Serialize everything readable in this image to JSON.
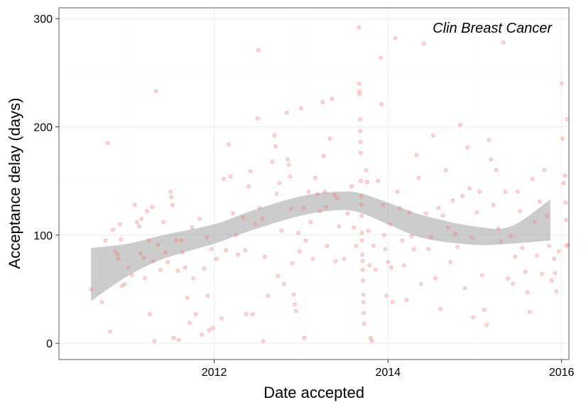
{
  "chart_data": {
    "type": "scatter",
    "annotation": "Clin Breast Cancer",
    "xlabel": "Date accepted",
    "ylabel": "Acceptance delay (days)",
    "x_axis_type": "date",
    "xlim": [
      "2010-03-19",
      "2016-02-01"
    ],
    "ylim": [
      -15,
      310
    ],
    "x_ticks": [
      {
        "value": "2012-01-01",
        "label": "2012"
      },
      {
        "value": "2014-01-01",
        "label": "2014"
      },
      {
        "value": "2016-01-01",
        "label": "2016"
      }
    ],
    "y_ticks": [
      {
        "value": 0,
        "label": "0"
      },
      {
        "value": 100,
        "label": "100"
      },
      {
        "value": 200,
        "label": "200"
      },
      {
        "value": 300,
        "label": "300"
      }
    ],
    "grid": true,
    "point_color": "#f8766d",
    "band_color": "#999999",
    "smooth": {
      "x": [
        "2010-08-01",
        "2011-01-01",
        "2011-06-01",
        "2012-01-01",
        "2012-06-01",
        "2013-01-01",
        "2013-06-01",
        "2013-09-01",
        "2014-01-01",
        "2014-06-01",
        "2015-01-01",
        "2015-06-01",
        "2015-11-15"
      ],
      "upper": [
        88,
        92,
        100,
        110,
        122,
        136,
        140,
        139,
        130,
        118,
        108,
        108,
        133
      ],
      "lower": [
        39,
        62,
        78,
        92,
        104,
        118,
        123,
        121,
        110,
        97,
        91,
        92,
        95
      ]
    },
    "points": [
      {
        "x": "2010-08-01",
        "y": 50
      },
      {
        "x": "2010-09-15",
        "y": 38
      },
      {
        "x": "2010-10-01",
        "y": 95
      },
      {
        "x": "2010-10-10",
        "y": 185
      },
      {
        "x": "2010-10-20",
        "y": 11
      },
      {
        "x": "2010-11-01",
        "y": 105
      },
      {
        "x": "2010-11-10",
        "y": 85
      },
      {
        "x": "2010-11-20",
        "y": 82
      },
      {
        "x": "2010-11-25",
        "y": 78
      },
      {
        "x": "2010-12-01",
        "y": 110
      },
      {
        "x": "2010-12-05",
        "y": 96
      },
      {
        "x": "2010-12-10",
        "y": 53
      },
      {
        "x": "2010-12-20",
        "y": 55
      },
      {
        "x": "2011-01-05",
        "y": 70
      },
      {
        "x": "2011-01-20",
        "y": 63
      },
      {
        "x": "2011-02-01",
        "y": 128
      },
      {
        "x": "2011-02-10",
        "y": 112
      },
      {
        "x": "2011-02-20",
        "y": 108
      },
      {
        "x": "2011-02-25",
        "y": 83
      },
      {
        "x": "2011-03-01",
        "y": 115
      },
      {
        "x": "2011-03-10",
        "y": 79
      },
      {
        "x": "2011-03-15",
        "y": 60
      },
      {
        "x": "2011-03-25",
        "y": 122
      },
      {
        "x": "2011-04-01",
        "y": 95
      },
      {
        "x": "2011-04-05",
        "y": 27
      },
      {
        "x": "2011-04-15",
        "y": 126
      },
      {
        "x": "2011-04-20",
        "y": 76
      },
      {
        "x": "2011-04-25",
        "y": 2
      },
      {
        "x": "2011-05-01",
        "y": 233
      },
      {
        "x": "2011-05-10",
        "y": 91
      },
      {
        "x": "2011-05-20",
        "y": 68
      },
      {
        "x": "2011-06-01",
        "y": 112
      },
      {
        "x": "2011-06-10",
        "y": 84
      },
      {
        "x": "2011-06-20",
        "y": 75
      },
      {
        "x": "2011-07-01",
        "y": 140
      },
      {
        "x": "2011-07-05",
        "y": 135
      },
      {
        "x": "2011-07-10",
        "y": 128
      },
      {
        "x": "2011-07-15",
        "y": 5
      },
      {
        "x": "2011-07-25",
        "y": 95
      },
      {
        "x": "2011-08-01",
        "y": 67
      },
      {
        "x": "2011-08-05",
        "y": 3
      },
      {
        "x": "2011-08-15",
        "y": 95
      },
      {
        "x": "2011-08-20",
        "y": 84
      },
      {
        "x": "2011-09-01",
        "y": 70
      },
      {
        "x": "2011-09-10",
        "y": 42
      },
      {
        "x": "2011-09-20",
        "y": 19
      },
      {
        "x": "2011-10-01",
        "y": 107
      },
      {
        "x": "2011-10-05",
        "y": 60
      },
      {
        "x": "2011-10-15",
        "y": 27
      },
      {
        "x": "2011-11-01",
        "y": 115
      },
      {
        "x": "2011-11-10",
        "y": 8
      },
      {
        "x": "2011-11-20",
        "y": 69
      },
      {
        "x": "2011-12-01",
        "y": 98
      },
      {
        "x": "2011-12-05",
        "y": 44
      },
      {
        "x": "2011-12-10",
        "y": 12
      },
      {
        "x": "2011-12-20",
        "y": 87
      },
      {
        "x": "2011-12-25",
        "y": 14
      },
      {
        "x": "2012-01-10",
        "y": 78
      },
      {
        "x": "2012-02-01",
        "y": 23
      },
      {
        "x": "2012-02-10",
        "y": 152
      },
      {
        "x": "2012-02-20",
        "y": 86
      },
      {
        "x": "2012-03-01",
        "y": 184
      },
      {
        "x": "2012-03-10",
        "y": 154
      },
      {
        "x": "2012-03-20",
        "y": 120
      },
      {
        "x": "2012-04-01",
        "y": 100
      },
      {
        "x": "2012-04-10",
        "y": 82
      },
      {
        "x": "2012-05-01",
        "y": 116
      },
      {
        "x": "2012-05-10",
        "y": 86
      },
      {
        "x": "2012-05-15",
        "y": 27
      },
      {
        "x": "2012-05-25",
        "y": 145
      },
      {
        "x": "2012-06-01",
        "y": 159
      },
      {
        "x": "2012-06-10",
        "y": 27
      },
      {
        "x": "2012-06-20",
        "y": 110
      },
      {
        "x": "2012-07-01",
        "y": 208
      },
      {
        "x": "2012-07-05",
        "y": 271
      },
      {
        "x": "2012-07-10",
        "y": 125
      },
      {
        "x": "2012-07-20",
        "y": 115
      },
      {
        "x": "2012-07-25",
        "y": 2
      },
      {
        "x": "2012-08-01",
        "y": 80
      },
      {
        "x": "2012-08-15",
        "y": 44
      },
      {
        "x": "2012-09-01",
        "y": 168
      },
      {
        "x": "2012-09-10",
        "y": 192
      },
      {
        "x": "2012-09-15",
        "y": 182
      },
      {
        "x": "2012-09-20",
        "y": 138
      },
      {
        "x": "2012-09-25",
        "y": 62
      },
      {
        "x": "2012-10-01",
        "y": 148
      },
      {
        "x": "2012-10-10",
        "y": 104
      },
      {
        "x": "2012-10-20",
        "y": 55
      },
      {
        "x": "2012-11-01",
        "y": 213
      },
      {
        "x": "2012-11-05",
        "y": 170
      },
      {
        "x": "2012-11-10",
        "y": 165
      },
      {
        "x": "2012-11-15",
        "y": 154
      },
      {
        "x": "2012-11-20",
        "y": 124
      },
      {
        "x": "2012-11-25",
        "y": 74
      },
      {
        "x": "2012-12-01",
        "y": 45
      },
      {
        "x": "2012-12-05",
        "y": 36
      },
      {
        "x": "2012-12-10",
        "y": 30
      },
      {
        "x": "2012-12-20",
        "y": 102
      },
      {
        "x": "2012-12-25",
        "y": 85
      },
      {
        "x": "2013-01-01",
        "y": 217
      },
      {
        "x": "2013-01-10",
        "y": 125
      },
      {
        "x": "2013-01-15",
        "y": 5
      },
      {
        "x": "2013-01-20",
        "y": 95
      },
      {
        "x": "2013-02-01",
        "y": 140
      },
      {
        "x": "2013-02-10",
        "y": 112
      },
      {
        "x": "2013-02-20",
        "y": 78
      },
      {
        "x": "2013-03-01",
        "y": 153
      },
      {
        "x": "2013-03-10",
        "y": 138
      },
      {
        "x": "2013-03-20",
        "y": 122
      },
      {
        "x": "2013-04-01",
        "y": 223
      },
      {
        "x": "2013-04-05",
        "y": 173
      },
      {
        "x": "2013-04-10",
        "y": 140
      },
      {
        "x": "2013-04-15",
        "y": 126
      },
      {
        "x": "2013-04-20",
        "y": 90
      },
      {
        "x": "2013-05-01",
        "y": 189
      },
      {
        "x": "2013-05-10",
        "y": 226
      },
      {
        "x": "2013-05-20",
        "y": 137
      },
      {
        "x": "2013-05-25",
        "y": 76
      },
      {
        "x": "2013-06-01",
        "y": 134
      },
      {
        "x": "2013-06-10",
        "y": 108
      },
      {
        "x": "2013-07-01",
        "y": 78
      },
      {
        "x": "2013-07-15",
        "y": 120
      },
      {
        "x": "2013-08-01",
        "y": 145
      },
      {
        "x": "2013-08-10",
        "y": 107
      },
      {
        "x": "2013-08-20",
        "y": 90
      },
      {
        "x": "2013-09-01",
        "y": 292
      },
      {
        "x": "2013-09-02",
        "y": 240
      },
      {
        "x": "2013-09-03",
        "y": 233
      },
      {
        "x": "2013-09-04",
        "y": 230
      },
      {
        "x": "2013-09-05",
        "y": 207
      },
      {
        "x": "2013-09-06",
        "y": 196
      },
      {
        "x": "2013-09-07",
        "y": 186
      },
      {
        "x": "2013-09-08",
        "y": 176
      },
      {
        "x": "2013-09-09",
        "y": 150
      },
      {
        "x": "2013-09-10",
        "y": 136
      },
      {
        "x": "2013-09-11",
        "y": 128
      },
      {
        "x": "2013-09-12",
        "y": 118
      },
      {
        "x": "2013-09-13",
        "y": 102
      },
      {
        "x": "2013-09-14",
        "y": 95
      },
      {
        "x": "2013-09-15",
        "y": 82
      },
      {
        "x": "2013-09-16",
        "y": 76
      },
      {
        "x": "2013-09-17",
        "y": 68
      },
      {
        "x": "2013-09-18",
        "y": 58
      },
      {
        "x": "2013-09-19",
        "y": 45
      },
      {
        "x": "2013-09-20",
        "y": 38
      },
      {
        "x": "2013-09-21",
        "y": 28
      },
      {
        "x": "2013-09-22",
        "y": 18
      },
      {
        "x": "2013-10-01",
        "y": 160
      },
      {
        "x": "2013-10-05",
        "y": 149
      },
      {
        "x": "2013-10-10",
        "y": 104
      },
      {
        "x": "2013-10-15",
        "y": 72
      },
      {
        "x": "2013-10-20",
        "y": 5
      },
      {
        "x": "2013-10-25",
        "y": 2
      },
      {
        "x": "2013-11-01",
        "y": 90
      },
      {
        "x": "2013-11-10",
        "y": 68
      },
      {
        "x": "2013-11-20",
        "y": 150
      },
      {
        "x": "2013-12-01",
        "y": 264
      },
      {
        "x": "2013-12-05",
        "y": 221
      },
      {
        "x": "2013-12-10",
        "y": 128
      },
      {
        "x": "2013-12-15",
        "y": 100
      },
      {
        "x": "2013-12-20",
        "y": 87
      },
      {
        "x": "2013-12-25",
        "y": 44
      },
      {
        "x": "2014-01-01",
        "y": 75
      },
      {
        "x": "2014-01-10",
        "y": 110
      },
      {
        "x": "2014-01-15",
        "y": 70
      },
      {
        "x": "2014-01-20",
        "y": 38
      },
      {
        "x": "2014-02-01",
        "y": 282
      },
      {
        "x": "2014-02-10",
        "y": 140
      },
      {
        "x": "2014-02-20",
        "y": 125
      },
      {
        "x": "2014-03-01",
        "y": 95
      },
      {
        "x": "2014-03-10",
        "y": 72
      },
      {
        "x": "2014-03-20",
        "y": 40
      },
      {
        "x": "2014-04-01",
        "y": 121
      },
      {
        "x": "2014-04-10",
        "y": 99
      },
      {
        "x": "2014-04-20",
        "y": 87
      },
      {
        "x": "2014-05-01",
        "y": 174
      },
      {
        "x": "2014-05-10",
        "y": 153
      },
      {
        "x": "2014-05-20",
        "y": 55
      },
      {
        "x": "2014-06-01",
        "y": 277
      },
      {
        "x": "2014-06-10",
        "y": 120
      },
      {
        "x": "2014-06-20",
        "y": 87
      },
      {
        "x": "2014-07-01",
        "y": 98
      },
      {
        "x": "2014-07-10",
        "y": 192
      },
      {
        "x": "2014-07-20",
        "y": 60
      },
      {
        "x": "2014-08-01",
        "y": 125
      },
      {
        "x": "2014-08-10",
        "y": 32
      },
      {
        "x": "2014-08-20",
        "y": 118
      },
      {
        "x": "2014-09-01",
        "y": 160
      },
      {
        "x": "2014-09-10",
        "y": 107
      },
      {
        "x": "2014-09-20",
        "y": 75
      },
      {
        "x": "2014-10-01",
        "y": 132
      },
      {
        "x": "2014-10-10",
        "y": 101
      },
      {
        "x": "2014-10-20",
        "y": 89
      },
      {
        "x": "2014-11-01",
        "y": 202
      },
      {
        "x": "2014-11-10",
        "y": 136
      },
      {
        "x": "2014-11-20",
        "y": 51
      },
      {
        "x": "2014-12-01",
        "y": 181
      },
      {
        "x": "2014-12-10",
        "y": 143
      },
      {
        "x": "2014-12-20",
        "y": 98
      },
      {
        "x": "2014-12-25",
        "y": 24
      },
      {
        "x": "2015-01-10",
        "y": 121
      },
      {
        "x": "2015-01-20",
        "y": 140
      },
      {
        "x": "2015-02-01",
        "y": 63
      },
      {
        "x": "2015-02-10",
        "y": 31
      },
      {
        "x": "2015-02-20",
        "y": 17
      },
      {
        "x": "2015-03-01",
        "y": 188
      },
      {
        "x": "2015-03-10",
        "y": 170
      },
      {
        "x": "2015-03-20",
        "y": 128
      },
      {
        "x": "2015-04-01",
        "y": 160
      },
      {
        "x": "2015-04-10",
        "y": 106
      },
      {
        "x": "2015-04-20",
        "y": 94
      },
      {
        "x": "2015-05-01",
        "y": 278
      },
      {
        "x": "2015-05-10",
        "y": 140
      },
      {
        "x": "2015-05-20",
        "y": 60
      },
      {
        "x": "2015-06-01",
        "y": 99
      },
      {
        "x": "2015-06-10",
        "y": 55
      },
      {
        "x": "2015-06-20",
        "y": 80
      },
      {
        "x": "2015-07-01",
        "y": 140
      },
      {
        "x": "2015-07-10",
        "y": 122
      },
      {
        "x": "2015-07-20",
        "y": 88
      },
      {
        "x": "2015-08-01",
        "y": 66
      },
      {
        "x": "2015-08-10",
        "y": 47
      },
      {
        "x": "2015-08-20",
        "y": 29
      },
      {
        "x": "2015-09-01",
        "y": 152
      },
      {
        "x": "2015-09-10",
        "y": 112
      },
      {
        "x": "2015-09-20",
        "y": 81
      },
      {
        "x": "2015-10-01",
        "y": 131
      },
      {
        "x": "2015-10-10",
        "y": 64
      },
      {
        "x": "2015-10-20",
        "y": 160
      },
      {
        "x": "2015-11-01",
        "y": 118
      },
      {
        "x": "2015-11-10",
        "y": 90
      },
      {
        "x": "2015-11-20",
        "y": 58
      },
      {
        "x": "2015-12-01",
        "y": 78
      },
      {
        "x": "2015-12-05",
        "y": 65
      },
      {
        "x": "2015-12-10",
        "y": 48
      },
      {
        "x": "2015-12-20",
        "y": 85
      },
      {
        "x": "2016-01-01",
        "y": 240
      },
      {
        "x": "2016-01-05",
        "y": 189
      },
      {
        "x": "2016-01-10",
        "y": 148
      },
      {
        "x": "2016-01-15",
        "y": 155
      },
      {
        "x": "2016-01-18",
        "y": 130
      },
      {
        "x": "2016-01-20",
        "y": 114
      },
      {
        "x": "2016-01-22",
        "y": 90
      },
      {
        "x": "2016-01-25",
        "y": 207
      },
      {
        "x": "2016-01-28",
        "y": 91
      }
    ]
  }
}
